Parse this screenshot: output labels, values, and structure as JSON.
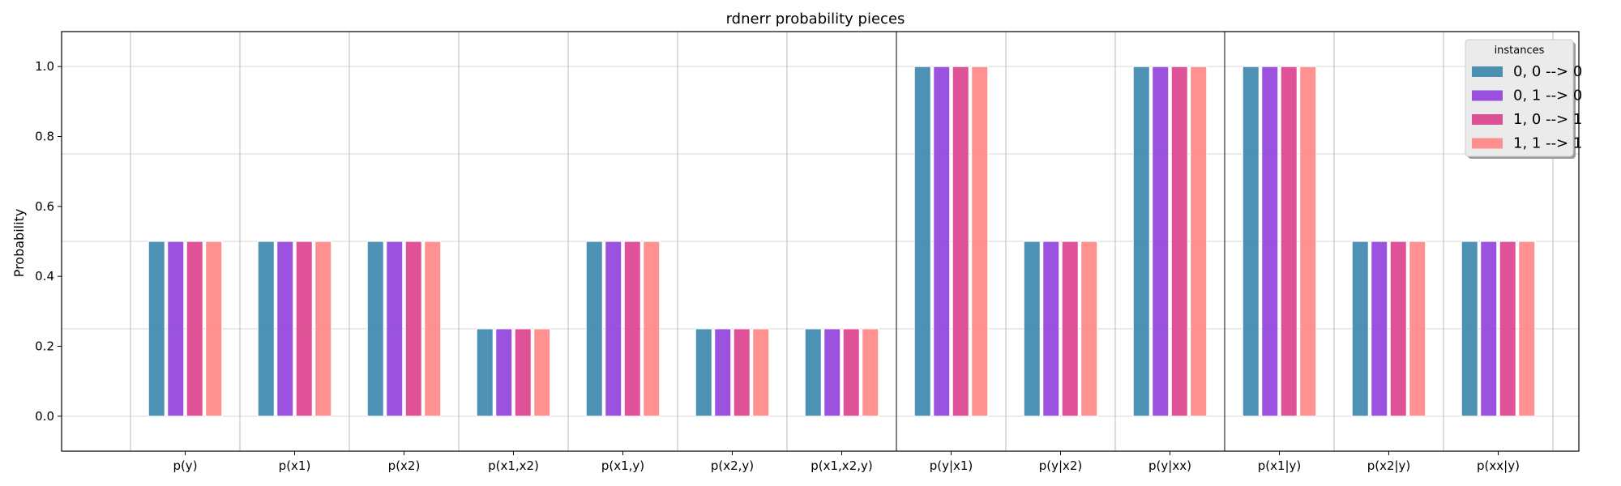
{
  "chart_data": {
    "type": "bar",
    "title": "rdnerr probability pieces",
    "xlabel": "",
    "ylabel": "Probability",
    "ylim": [
      -0.1,
      1.1
    ],
    "yticks": [
      0.0,
      0.2,
      0.4,
      0.6,
      0.8,
      1.0
    ],
    "ytick_labels": [
      "0.0",
      "0.2",
      "0.4",
      "0.6",
      "0.8",
      "1.0"
    ],
    "categories": [
      "p(y)",
      "p(x1)",
      "p(x2)",
      "p(x1,x2)",
      "p(x1,y)",
      "p(x2,y)",
      "p(x1,x2,y)",
      "p(y|x1)",
      "p(y|x2)",
      "p(y|xx)",
      "p(x1|y)",
      "p(x2|y)",
      "p(xx|y)"
    ],
    "series": [
      {
        "name": "0, 0 --> 0",
        "color": "#3a86ad",
        "values": [
          0.5,
          0.5,
          0.5,
          0.25,
          0.5,
          0.25,
          0.25,
          1.0,
          0.5,
          1.0,
          1.0,
          0.5,
          0.5
        ]
      },
      {
        "name": "0, 1 --> 0",
        "color": "#8f3fdc",
        "values": [
          0.5,
          0.5,
          0.5,
          0.25,
          0.5,
          0.25,
          0.25,
          1.0,
          0.5,
          1.0,
          1.0,
          0.5,
          0.5
        ]
      },
      {
        "name": "1, 0 --> 1",
        "color": "#dc3f8c",
        "values": [
          0.5,
          0.5,
          0.5,
          0.25,
          0.5,
          0.25,
          0.25,
          1.0,
          0.5,
          1.0,
          1.0,
          0.5,
          0.5
        ]
      },
      {
        "name": "1, 1 --> 1",
        "color": "#ff8585",
        "values": [
          0.5,
          0.5,
          0.5,
          0.25,
          0.5,
          0.25,
          0.25,
          1.0,
          0.5,
          1.0,
          1.0,
          0.5,
          0.5
        ]
      }
    ],
    "horizontal_gridlines": [
      0.0,
      0.25,
      0.5,
      0.75,
      1.0
    ],
    "group_separators_after": [
      "p(x1,x2,y)",
      "p(y|xx)"
    ],
    "legend": {
      "title": "instances",
      "position": "top-right"
    },
    "grid": true
  }
}
